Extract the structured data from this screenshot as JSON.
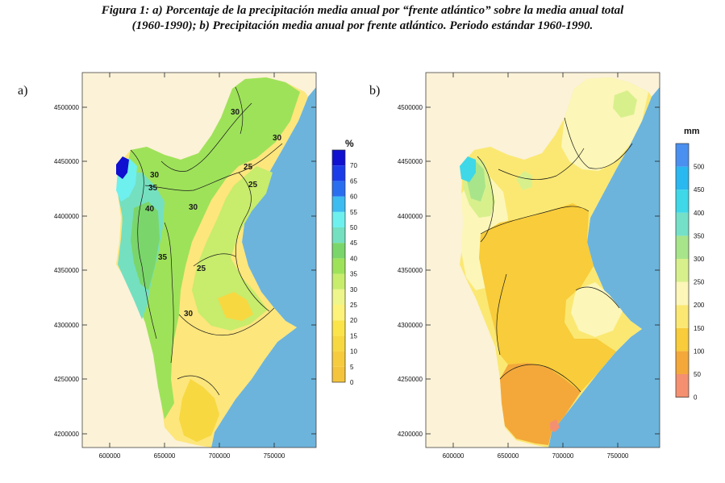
{
  "caption": {
    "line1": "Figura 1: a) Porcentaje de la precipitación media anual por “frente atlántico” sobre la media anual total",
    "line2": "(1960-1990); b)  Precipitación media anual por frente atlántico. Periodo estándar 1960-1990."
  },
  "panels": [
    {
      "letter": "a)",
      "x_ticks": [
        "600000",
        "650000",
        "700000",
        "750000"
      ],
      "y_ticks": [
        "4500000",
        "4450000",
        "4400000",
        "4350000",
        "4300000",
        "4250000",
        "4200000"
      ],
      "legend_unit": "%",
      "legend_labels": [
        "0",
        "5",
        "10",
        "15",
        "20",
        "25",
        "30",
        "35",
        "40",
        "45",
        "50",
        "55",
        "60",
        "65",
        "70"
      ],
      "legend_colors": [
        "#f4c43c",
        "#f6cc3e",
        "#f8d840",
        "#fae44a",
        "#fdf27a",
        "#eef58a",
        "#c8ec6c",
        "#9ee25a",
        "#7ad66a",
        "#74e0c0",
        "#6ef0ee",
        "#3cbcf0",
        "#2a6ef0",
        "#1a3ce8",
        "#1010d0"
      ],
      "contour_labels": [
        "30",
        "25",
        "25",
        "30",
        "40",
        "30",
        "30",
        "35",
        "25",
        "30",
        "35"
      ]
    },
    {
      "letter": "b)",
      "x_ticks": [
        "600000",
        "650000",
        "700000",
        "750000"
      ],
      "y_ticks": [
        "4500000",
        "4450000",
        "4400000",
        "4350000",
        "4300000",
        "4250000",
        "4200000"
      ],
      "legend_unit": "mm",
      "legend_labels": [
        "0",
        "50",
        "100",
        "150",
        "200",
        "250",
        "300",
        "350",
        "400",
        "450",
        "500"
      ],
      "legend_colors": [
        "#f49070",
        "#f4a83a",
        "#f8cc3a",
        "#fbe872",
        "#fcf6b8",
        "#d8f08c",
        "#a8e48a",
        "#74e0c8",
        "#3ed8e8",
        "#2ab8f0",
        "#4a90f0"
      ]
    }
  ],
  "colors": {
    "sea": "#6cb4dc",
    "land_outside": "#fbf2d8"
  }
}
